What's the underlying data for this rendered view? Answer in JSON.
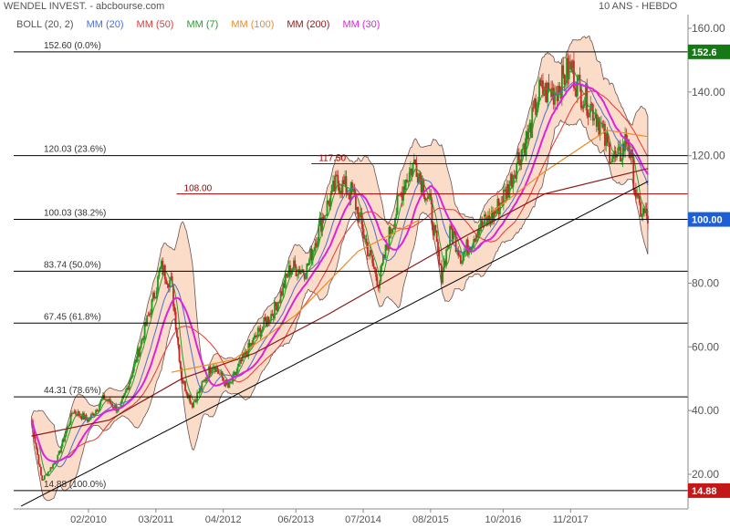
{
  "header": {
    "title": "WENDEL INVEST. - abcbourse.com",
    "period": "10 ANS - HEBDO"
  },
  "legend": [
    {
      "label": "BOLL (20, 2)",
      "color": "#555555"
    },
    {
      "label": "MM (20)",
      "color": "#4a6fd6"
    },
    {
      "label": "MM (50)",
      "color": "#e53935"
    },
    {
      "label": "MM (7)",
      "color": "#2e9a2e"
    },
    {
      "label": "MM (100)",
      "color": "#f08a24"
    },
    {
      "label": "MM (200)",
      "color": "#8b1a1a"
    },
    {
      "label": "MM (30)",
      "color": "#e020e0"
    }
  ],
  "chart_data": {
    "type": "line",
    "title": "WENDEL INVEST. - abcbourse.com",
    "period": "10 ANS - HEBDO",
    "ylim": [
      10,
      162
    ],
    "y_ticks": [
      20,
      40,
      60,
      80,
      100,
      120,
      140,
      160
    ],
    "x_ticks": [
      "02/2010",
      "03/2011",
      "04/2012",
      "06/2013",
      "07/2014",
      "08/2015",
      "10/2016",
      "11/2017"
    ],
    "price_path": [
      [
        "2009-03",
        37
      ],
      [
        "2009-05",
        18
      ],
      [
        "2009-08",
        25
      ],
      [
        "2009-11",
        40
      ],
      [
        "2010-02",
        37
      ],
      [
        "2010-05",
        44
      ],
      [
        "2010-08",
        40
      ],
      [
        "2010-11",
        55
      ],
      [
        "2011-02",
        72
      ],
      [
        "2011-04",
        85
      ],
      [
        "2011-06",
        80
      ],
      [
        "2011-08",
        50
      ],
      [
        "2011-10",
        42
      ],
      [
        "2011-12",
        48
      ],
      [
        "2012-02",
        55
      ],
      [
        "2012-05",
        47
      ],
      [
        "2012-08",
        57
      ],
      [
        "2012-11",
        65
      ],
      [
        "2013-02",
        72
      ],
      [
        "2013-05",
        85
      ],
      [
        "2013-08",
        84
      ],
      [
        "2013-11",
        100
      ],
      [
        "2014-02",
        112
      ],
      [
        "2014-05",
        108
      ],
      [
        "2014-08",
        90
      ],
      [
        "2014-10",
        80
      ],
      [
        "2014-12",
        95
      ],
      [
        "2015-03",
        112
      ],
      [
        "2015-05",
        118
      ],
      [
        "2015-08",
        104
      ],
      [
        "2015-10",
        82
      ],
      [
        "2015-12",
        97
      ],
      [
        "2016-02",
        88
      ],
      [
        "2016-05",
        97
      ],
      [
        "2016-08",
        101
      ],
      [
        "2016-11",
        110
      ],
      [
        "2017-01",
        120
      ],
      [
        "2017-03",
        127
      ],
      [
        "2017-05",
        140
      ],
      [
        "2017-08",
        140
      ],
      [
        "2017-11",
        148
      ],
      [
        "2018-01",
        140
      ],
      [
        "2018-04",
        133
      ],
      [
        "2018-06",
        123
      ],
      [
        "2018-08",
        118
      ],
      [
        "2018-10",
        126
      ],
      [
        "2018-12",
        104
      ],
      [
        "2019-02",
        100
      ]
    ],
    "moving_averages": [
      {
        "name": "MM (200)",
        "points": [
          [
            "2009-03",
            32
          ],
          [
            "2010-06",
            37
          ],
          [
            "2011-08",
            50
          ],
          [
            "2012-10",
            58
          ],
          [
            "2013-12",
            70
          ],
          [
            "2015-02",
            83
          ],
          [
            "2016-03",
            95
          ],
          [
            "2017-06",
            108
          ],
          [
            "2019-02",
            116
          ]
        ]
      },
      {
        "name": "MM (100)",
        "points": [
          [
            "2011-06",
            52
          ],
          [
            "2012-06",
            56
          ],
          [
            "2013-06",
            70
          ],
          [
            "2014-06",
            90
          ],
          [
            "2015-06",
            100
          ],
          [
            "2016-06",
            100
          ],
          [
            "2017-06",
            115
          ],
          [
            "2018-06",
            128
          ],
          [
            "2019-02",
            126
          ]
        ]
      }
    ],
    "current": {
      "label": "100.00",
      "value": 100.0
    },
    "high": {
      "label": "152.6",
      "value": 152.6
    },
    "low": {
      "label": "14.88",
      "value": 14.88
    },
    "fibonacci": [
      {
        "label": "152.60  (0.0%)",
        "value": 152.6
      },
      {
        "label": "120.03  (23.6%)",
        "value": 120.03
      },
      {
        "label": "100.03  (38.2%)",
        "value": 100.03
      },
      {
        "label": "83.74  (50.0%)",
        "value": 83.74
      },
      {
        "label": "67.45  (61.8%)",
        "value": 67.45
      },
      {
        "label": "44.31  (78.6%)",
        "value": 44.31
      },
      {
        "label": "14.88  (100.0%)",
        "value": 14.88
      }
    ],
    "resistances": [
      {
        "label": "117.50",
        "value": 117.5,
        "from": "2013-09"
      },
      {
        "label": "108.00",
        "value": 108.0,
        "from": "2011-07"
      }
    ],
    "trendline": {
      "from": [
        "2009-01",
        10
      ],
      "to": [
        "2019-02",
        112
      ]
    },
    "colors": {
      "candle_up": "#1e9a1e",
      "candle_down": "#c62828",
      "bollinger_fill": "#fbdcc8",
      "bollinger_line": "#6b5050",
      "high_tag": "#157a15",
      "low_tag": "#c21818",
      "current_tag": "#1f5fd6",
      "grid": "#000000"
    }
  }
}
